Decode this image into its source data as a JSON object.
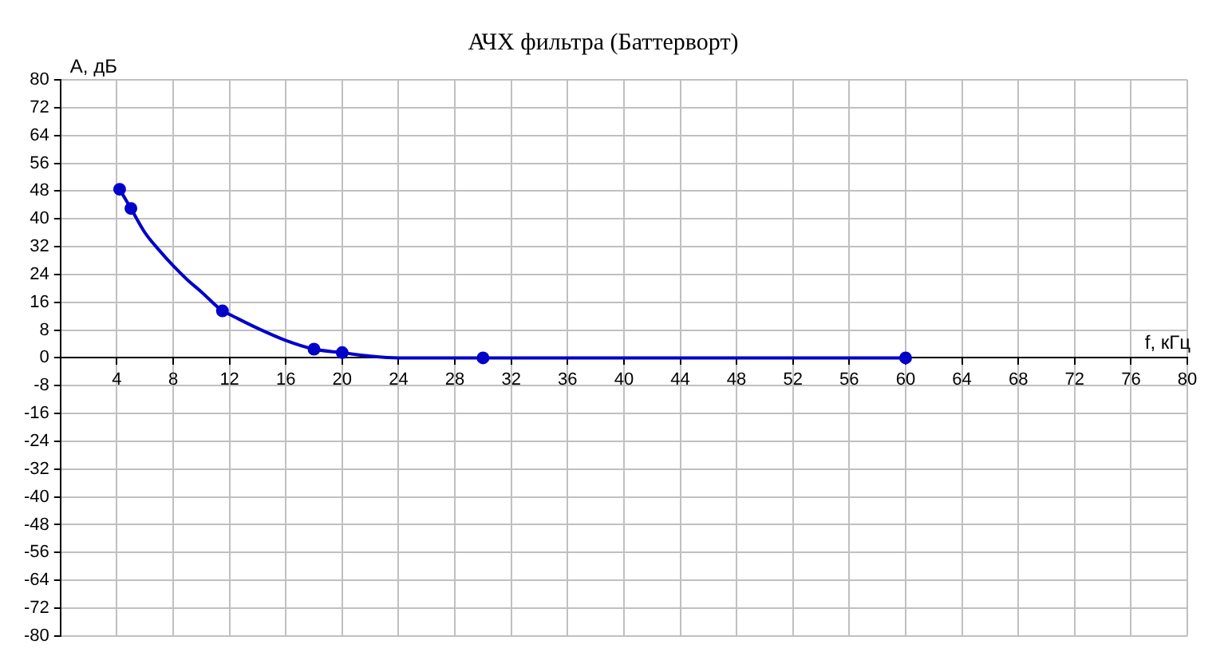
{
  "chart_data": {
    "type": "line",
    "title": "АЧХ фильтра (Баттерворт)",
    "xlabel": "f, кГц",
    "ylabel": "A, дБ",
    "series": [
      {
        "type": "line",
        "color": "#0000c8",
        "marker": "none",
        "x": [
          4.2,
          5,
          6,
          7,
          8,
          9,
          10,
          11.5,
          12,
          14,
          16,
          18,
          20,
          22,
          24,
          30,
          60
        ],
        "values": [
          48.5,
          43,
          36,
          31,
          26.5,
          22.5,
          19,
          13.5,
          12.5,
          8.5,
          5,
          2.5,
          1.5,
          0.5,
          0,
          0,
          0
        ]
      },
      {
        "type": "scatter",
        "color": "#0000c8",
        "marker": "circle",
        "x": [
          4.2,
          5,
          11.5,
          18,
          20,
          30,
          60
        ],
        "values": [
          48.5,
          43,
          13.5,
          2.5,
          1.5,
          0,
          0
        ]
      }
    ],
    "xlim": [
      0,
      80
    ],
    "xticks": [
      4,
      8,
      12,
      16,
      20,
      24,
      28,
      32,
      36,
      40,
      44,
      48,
      52,
      56,
      60,
      64,
      68,
      72,
      76,
      80
    ],
    "ylim": [
      -80,
      80
    ],
    "yticks": [
      -80,
      -72,
      -64,
      -56,
      -48,
      -40,
      -32,
      -24,
      -16,
      -8,
      0,
      8,
      16,
      24,
      32,
      40,
      48,
      56,
      64,
      72,
      80
    ],
    "grid": true,
    "legend": false
  }
}
